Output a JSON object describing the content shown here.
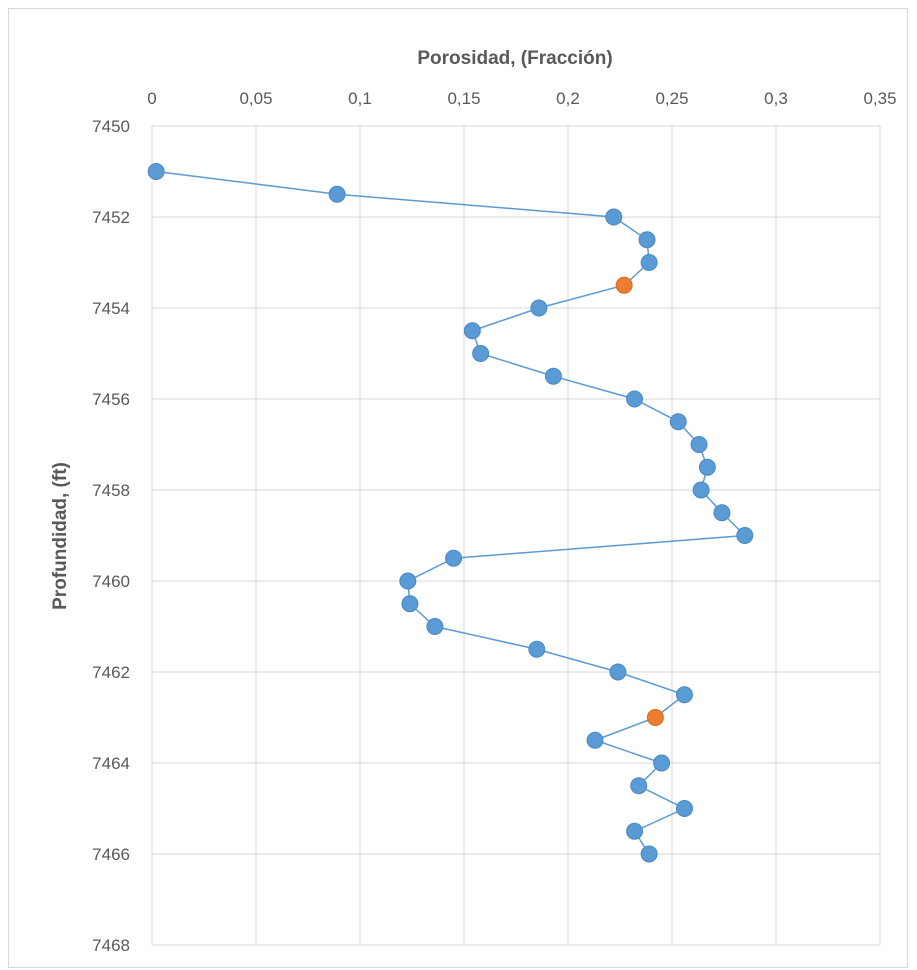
{
  "chart_data": {
    "type": "scatter",
    "title": "",
    "xlabel": "Porosidad, (Fracción)",
    "ylabel": "Profundidad, (ft)",
    "xlim": [
      0,
      0.35
    ],
    "ylim": [
      7450,
      7468
    ],
    "x_axis_position": "top",
    "y_axis_inverted": true,
    "grid": true,
    "xticks": [
      0,
      0.05,
      0.1,
      0.15,
      0.2,
      0.25,
      0.3,
      0.35
    ],
    "xtick_labels": [
      "0",
      "0,05",
      "0,1",
      "0,15",
      "0,2",
      "0,25",
      "0,3",
      "0,35"
    ],
    "yticks": [
      7450,
      7452,
      7454,
      7456,
      7458,
      7460,
      7462,
      7464,
      7466,
      7468
    ],
    "ytick_labels": [
      "7450",
      "7452",
      "7454",
      "7456",
      "7458",
      "7460",
      "7462",
      "7464",
      "7466",
      "7468"
    ],
    "line_color": "#5b9bd5",
    "marker_color": "#5b9bd5",
    "highlight_color": "#ed7d31",
    "series": [
      {
        "values": [
          {
            "x": 0.002,
            "y": 7451.0
          },
          {
            "x": 0.089,
            "y": 7451.5
          },
          {
            "x": 0.222,
            "y": 7452.0
          },
          {
            "x": 0.238,
            "y": 7452.5
          },
          {
            "x": 0.239,
            "y": 7453.0
          },
          {
            "x": 0.227,
            "y": 7453.5,
            "highlight": true
          },
          {
            "x": 0.186,
            "y": 7454.0
          },
          {
            "x": 0.154,
            "y": 7454.5
          },
          {
            "x": 0.158,
            "y": 7455.0
          },
          {
            "x": 0.193,
            "y": 7455.5
          },
          {
            "x": 0.232,
            "y": 7456.0
          },
          {
            "x": 0.253,
            "y": 7456.5
          },
          {
            "x": 0.263,
            "y": 7457.0
          },
          {
            "x": 0.267,
            "y": 7457.5
          },
          {
            "x": 0.264,
            "y": 7458.0
          },
          {
            "x": 0.274,
            "y": 7458.5
          },
          {
            "x": 0.285,
            "y": 7459.0
          },
          {
            "x": 0.145,
            "y": 7459.5
          },
          {
            "x": 0.123,
            "y": 7460.0
          },
          {
            "x": 0.124,
            "y": 7460.5
          },
          {
            "x": 0.136,
            "y": 7461.0
          },
          {
            "x": 0.185,
            "y": 7461.5
          },
          {
            "x": 0.224,
            "y": 7462.0
          },
          {
            "x": 0.256,
            "y": 7462.5
          },
          {
            "x": 0.242,
            "y": 7463.0,
            "highlight": true
          },
          {
            "x": 0.213,
            "y": 7463.5
          },
          {
            "x": 0.245,
            "y": 7464.0
          },
          {
            "x": 0.234,
            "y": 7464.5
          },
          {
            "x": 0.256,
            "y": 7465.0
          },
          {
            "x": 0.232,
            "y": 7465.5
          },
          {
            "x": 0.239,
            "y": 7466.0
          }
        ]
      }
    ]
  }
}
